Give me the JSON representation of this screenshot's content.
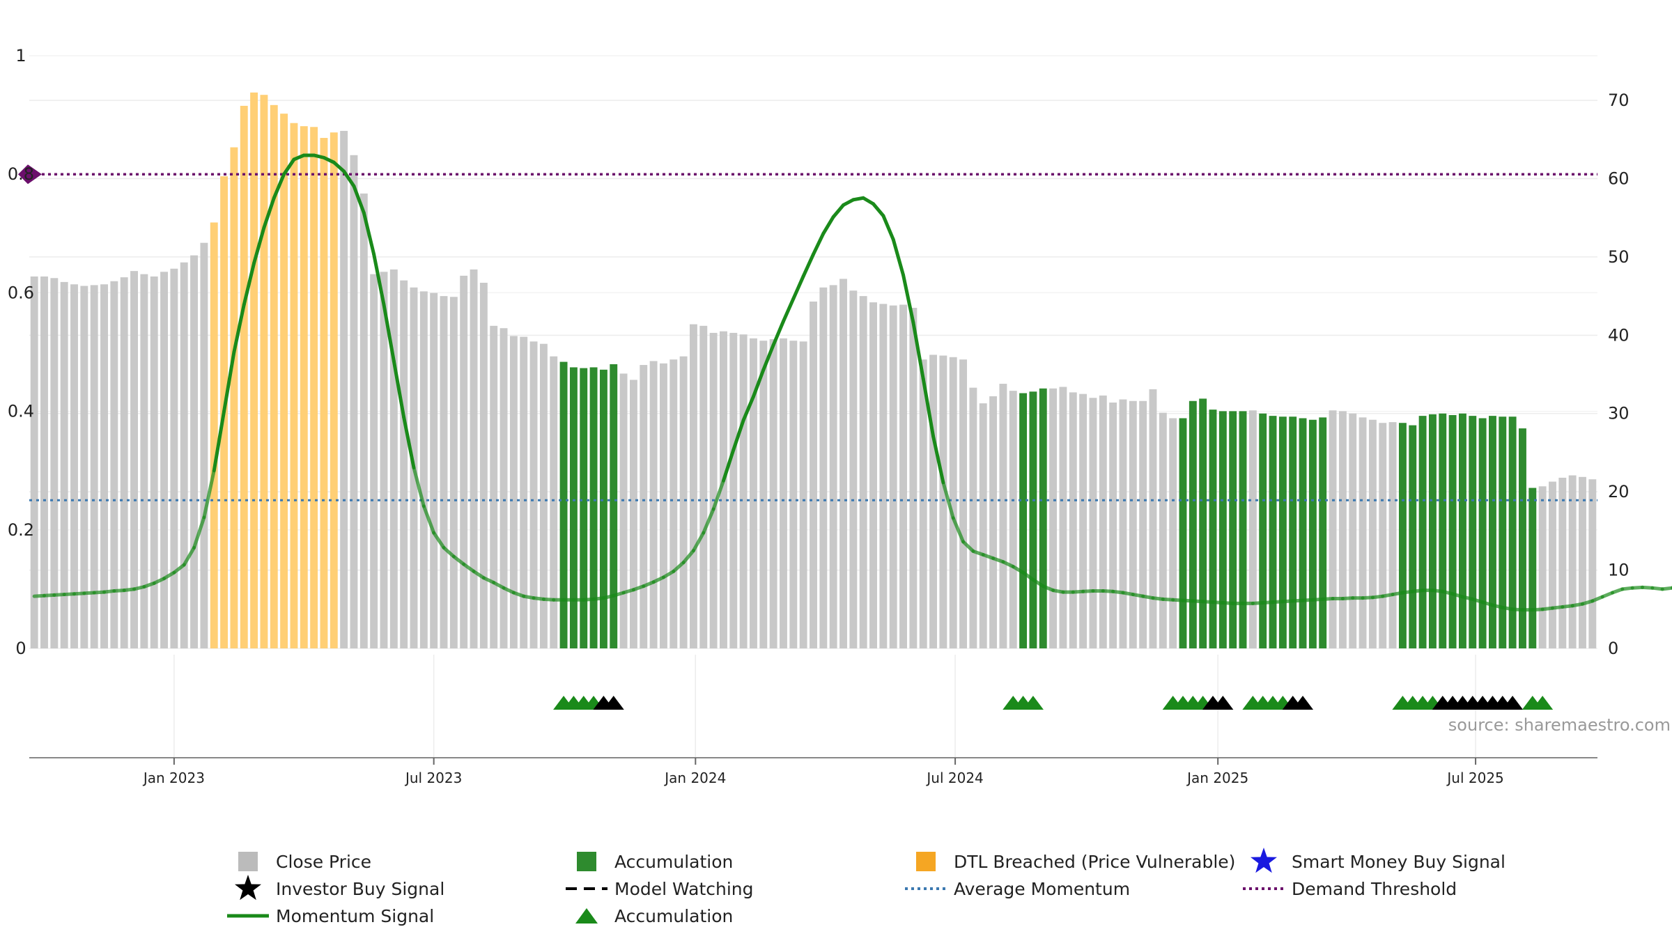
{
  "source_label": "source: sharemaestro.com",
  "chart_data": {
    "type": "bar",
    "left_axis": {
      "ticks": [
        "0",
        "0.2",
        "0.4",
        "0.6",
        "0.8",
        "1"
      ],
      "ylim": [
        0,
        1
      ]
    },
    "right_axis": {
      "ticks": [
        "0",
        "10",
        "20",
        "30",
        "40",
        "50",
        "60",
        "70"
      ],
      "ylim": [
        0,
        75.7
      ]
    },
    "x_ticks": [
      {
        "label": "Jan 2023",
        "week": 14.5
      },
      {
        "label": "Jul 2023",
        "week": 40.5
      },
      {
        "label": "Jan 2024",
        "week": 66.7
      },
      {
        "label": "Jul 2024",
        "week": 92.7
      },
      {
        "label": "Jan 2025",
        "week": 119
      },
      {
        "label": "Jul 2025",
        "week": 144.8
      }
    ],
    "weeks_total": 157,
    "close_price": [
      47.5,
      47.5,
      47.3,
      46.8,
      46.5,
      46.3,
      46.4,
      46.5,
      46.9,
      47.4,
      48.2,
      47.8,
      47.5,
      48.1,
      48.5,
      49.3,
      50.2,
      51.8,
      54.4,
      60.3,
      64.0,
      69.3,
      71.0,
      70.7,
      69.4,
      68.3,
      67.1,
      66.7,
      66.6,
      65.2,
      65.9,
      66.1,
      63.0,
      58.1,
      47.8,
      48.1,
      48.4,
      47.0,
      46.1,
      45.6,
      45.4,
      45.0,
      44.9,
      47.6,
      48.4,
      46.7,
      41.2,
      40.9,
      39.9,
      39.8,
      39.2,
      38.9,
      37.3,
      36.6,
      35.9,
      35.8,
      35.9,
      35.6,
      36.3,
      35.1,
      34.3,
      36.2,
      36.7,
      36.4,
      36.9,
      37.3,
      41.4,
      41.2,
      40.3,
      40.5,
      40.3,
      40.1,
      39.6,
      39.3,
      39.5,
      39.6,
      39.3,
      39.2,
      44.3,
      46.1,
      46.4,
      47.2,
      45.7,
      45.0,
      44.2,
      44.0,
      43.8,
      43.9,
      43.5,
      36.9,
      37.5,
      37.4,
      37.2,
      36.9,
      33.3,
      31.3,
      32.2,
      33.8,
      32.9,
      32.6,
      32.8,
      33.2,
      33.2,
      33.4,
      32.7,
      32.5,
      32.0,
      32.3,
      31.4,
      31.8,
      31.6,
      31.6,
      33.1,
      30.1,
      29.4,
      29.4,
      31.6,
      31.9,
      30.5,
      30.3,
      30.3,
      30.3,
      30.4,
      30.0,
      29.7,
      29.6,
      29.6,
      29.4,
      29.2,
      29.5,
      30.4,
      30.3,
      30.0,
      29.5,
      29.2,
      28.8,
      28.9,
      28.8,
      28.5,
      29.7,
      29.9,
      30.0,
      29.8,
      30.0,
      29.7,
      29.4,
      29.7,
      29.6,
      29.6,
      28.1,
      20.5,
      20.7,
      21.3,
      21.8,
      22.1,
      21.9,
      21.6
    ],
    "momentum": [
      0.088,
      0.089,
      0.09,
      0.091,
      0.092,
      0.093,
      0.094,
      0.095,
      0.097,
      0.098,
      0.1,
      0.104,
      0.11,
      0.118,
      0.128,
      0.141,
      0.17,
      0.221,
      0.3,
      0.4,
      0.5,
      0.58,
      0.65,
      0.71,
      0.76,
      0.8,
      0.825,
      0.832,
      0.832,
      0.828,
      0.82,
      0.805,
      0.78,
      0.735,
      0.665,
      0.58,
      0.485,
      0.39,
      0.305,
      0.24,
      0.195,
      0.17,
      0.155,
      0.142,
      0.13,
      0.119,
      0.111,
      0.102,
      0.094,
      0.088,
      0.085,
      0.083,
      0.082,
      0.082,
      0.082,
      0.082,
      0.083,
      0.085,
      0.089,
      0.094,
      0.099,
      0.105,
      0.112,
      0.12,
      0.13,
      0.145,
      0.165,
      0.195,
      0.235,
      0.283,
      0.335,
      0.385,
      0.425,
      0.47,
      0.512,
      0.552,
      0.59,
      0.628,
      0.665,
      0.7,
      0.728,
      0.748,
      0.757,
      0.76,
      0.75,
      0.73,
      0.69,
      0.63,
      0.55,
      0.455,
      0.358,
      0.28,
      0.22,
      0.18,
      0.164,
      0.158,
      0.152,
      0.146,
      0.138,
      0.128,
      0.116,
      0.105,
      0.098,
      0.095,
      0.095,
      0.096,
      0.097,
      0.097,
      0.096,
      0.094,
      0.091,
      0.088,
      0.085,
      0.083,
      0.082,
      0.081,
      0.08,
      0.079,
      0.078,
      0.077,
      0.076,
      0.076,
      0.076,
      0.077,
      0.078,
      0.079,
      0.08,
      0.081,
      0.082,
      0.083,
      0.084,
      0.084,
      0.085,
      0.085,
      0.086,
      0.088,
      0.091,
      0.094,
      0.096,
      0.098,
      0.098,
      0.096,
      0.092,
      0.087,
      0.083,
      0.078,
      0.073,
      0.069,
      0.066,
      0.065,
      0.065,
      0.066,
      0.068,
      0.07,
      0.072,
      0.075,
      0.08,
      0.087,
      0.094,
      0.1,
      0.102,
      0.103,
      0.102,
      0.1,
      0.102,
      0.12,
      0.2,
      0.25,
      0.3,
      0.335,
      0.35
    ],
    "bar_categories": {
      "dtl_breached": [
        18,
        30
      ],
      "accumulation": [
        [
          53,
          58
        ],
        [
          99,
          101
        ],
        [
          115,
          121
        ],
        [
          123,
          129
        ],
        [
          137,
          150
        ]
      ]
    },
    "average_momentum": 0.25,
    "demand_threshold": 0.8,
    "triangle_markers": [
      {
        "week": 53.5,
        "color": "green"
      },
      {
        "week": 54.5,
        "color": "green"
      },
      {
        "week": 55.5,
        "color": "green"
      },
      {
        "week": 56.5,
        "color": "green"
      },
      {
        "week": 57.5,
        "color": "black"
      },
      {
        "week": 58.5,
        "color": "black"
      },
      {
        "week": 98.5,
        "color": "green"
      },
      {
        "week": 99.5,
        "color": "green"
      },
      {
        "week": 100.5,
        "color": "green"
      },
      {
        "week": 114.5,
        "color": "green"
      },
      {
        "week": 115.5,
        "color": "green"
      },
      {
        "week": 116.5,
        "color": "green"
      },
      {
        "week": 117.5,
        "color": "green"
      },
      {
        "week": 118.5,
        "color": "black"
      },
      {
        "week": 119.5,
        "color": "black"
      },
      {
        "week": 122.5,
        "color": "green"
      },
      {
        "week": 123.5,
        "color": "green"
      },
      {
        "week": 124.5,
        "color": "green"
      },
      {
        "week": 125.5,
        "color": "green"
      },
      {
        "week": 126.5,
        "color": "black"
      },
      {
        "week": 127.5,
        "color": "black"
      },
      {
        "week": 137.5,
        "color": "green"
      },
      {
        "week": 138.5,
        "color": "green"
      },
      {
        "week": 139.5,
        "color": "green"
      },
      {
        "week": 140.5,
        "color": "green"
      },
      {
        "week": 141.5,
        "color": "black"
      },
      {
        "week": 142.5,
        "color": "black"
      },
      {
        "week": 143.5,
        "color": "black"
      },
      {
        "week": 144.5,
        "color": "black"
      },
      {
        "week": 145.5,
        "color": "black"
      },
      {
        "week": 146.5,
        "color": "black"
      },
      {
        "week": 147.5,
        "color": "black"
      },
      {
        "week": 148.5,
        "color": "black"
      },
      {
        "week": 150.5,
        "color": "green"
      },
      {
        "week": 151.5,
        "color": "green"
      }
    ],
    "legend": [
      {
        "label": "Close Price",
        "symbol": "square",
        "color": "#bbbbbb"
      },
      {
        "label": "Accumulation",
        "symbol": "square",
        "color": "#2e8b2e"
      },
      {
        "label": "DTL Breached (Price Vulnerable)",
        "symbol": "square",
        "color": "#f5a623"
      },
      {
        "label": "Smart Money Buy Signal",
        "symbol": "star",
        "color": "#1a1adf"
      },
      {
        "label": "Investor Buy Signal",
        "symbol": "star",
        "color": "#000000"
      },
      {
        "label": "Model Watching",
        "symbol": "dash",
        "color": "#000000"
      },
      {
        "label": "Average Momentum",
        "symbol": "dotted",
        "color": "#3b78b0"
      },
      {
        "label": "Demand Threshold",
        "symbol": "dotted",
        "color": "#6b0f6b"
      },
      {
        "label": "Momentum Signal",
        "symbol": "line",
        "color": "#1a8a1a"
      },
      {
        "label": "Accumulation",
        "symbol": "triangle",
        "color": "#1a8a1a"
      }
    ],
    "colors": {
      "close_price": "#c8c8c8",
      "accumulation": "#2e8b2e",
      "dtl_breached": "#ffcf75",
      "momentum": "#1a8a1a",
      "average_momentum": "#3b78b0",
      "demand_threshold": "#6b0f6b",
      "triangle_green": "#1a8a1a",
      "triangle_black": "#000000"
    }
  }
}
